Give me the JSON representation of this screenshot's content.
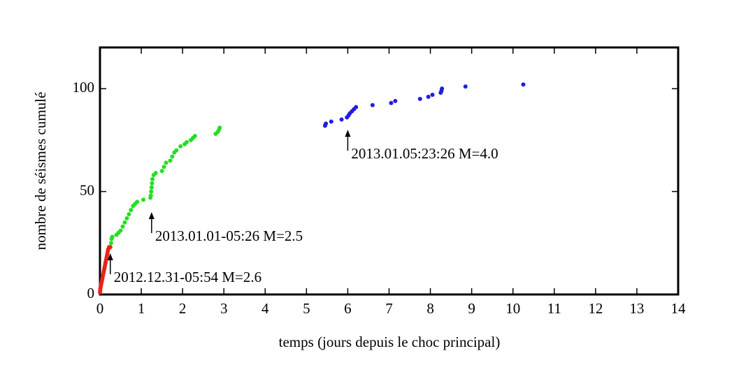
{
  "chart_data": {
    "type": "scatter",
    "xlabel": "temps (jours depuis le choc principal)",
    "ylabel": "nombre de séismes cumulé",
    "xlim": [
      0,
      14
    ],
    "xticks": [
      0,
      1,
      2,
      3,
      4,
      5,
      6,
      7,
      8,
      9,
      10,
      11,
      12,
      13,
      14
    ],
    "ylim": [
      0,
      120
    ],
    "yticks": [
      0,
      50,
      100
    ],
    "series": [
      {
        "color": "#e8231b",
        "x": [
          0,
          0.005,
          0.01,
          0.02,
          0.03,
          0.04,
          0.05,
          0.06,
          0.07,
          0.08,
          0.09,
          0.1,
          0.11,
          0.12,
          0.13,
          0.14,
          0.15,
          0.16,
          0.17,
          0.18,
          0.19,
          0.2,
          0.22,
          0.25
        ],
        "values": [
          1,
          2,
          3,
          4,
          5,
          6,
          7,
          8,
          9,
          10,
          11,
          12,
          13,
          14,
          15,
          16,
          17,
          18,
          19,
          20,
          21,
          22,
          23,
          23
        ]
      },
      {
        "color": "#22e01e",
        "x": [
          0.27,
          0.28,
          0.3,
          0.4,
          0.45,
          0.5,
          0.55,
          0.6,
          0.65,
          0.7,
          0.75,
          0.8,
          0.85,
          0.9,
          1.05,
          1.22,
          1.23,
          1.24,
          1.25,
          1.26,
          1.27,
          1.3,
          1.35,
          1.5,
          1.55,
          1.6,
          1.7,
          1.75,
          1.8,
          1.85,
          1.95,
          2.05,
          2.1,
          2.2,
          2.25,
          2.3,
          2.8,
          2.85,
          2.88,
          2.9
        ],
        "values": [
          25,
          27,
          28,
          29,
          30,
          31,
          33,
          35,
          37,
          39,
          41,
          43,
          44,
          45,
          46,
          47,
          48,
          50,
          52,
          54,
          56,
          58,
          59,
          60,
          62,
          64,
          65,
          67,
          69,
          70,
          72,
          73,
          74,
          75,
          76,
          77,
          78,
          79,
          80,
          81
        ]
      },
      {
        "color": "#1e1ee0",
        "x": [
          5.45,
          5.47,
          5.6,
          5.85,
          5.98,
          6.02,
          6.05,
          6.1,
          6.15,
          6.2,
          6.6,
          7.05,
          7.15,
          7.75,
          7.95,
          8.05,
          8.25,
          8.27,
          8.28,
          8.85,
          10.25
        ],
        "values": [
          82,
          83,
          84,
          85,
          86,
          87,
          88,
          89,
          90,
          91,
          92,
          93,
          94,
          95,
          96,
          97,
          98,
          99,
          100,
          101,
          102
        ]
      }
    ],
    "annotations": [
      {
        "text": "2012.12.31-05:54 M=2.6",
        "x": 0.25,
        "y": 20
      },
      {
        "text": "2013.01.01-05:26 M=2.5",
        "x": 1.25,
        "y": 40
      },
      {
        "text": "2013.01.05:23:26 M=4.0",
        "x": 6.0,
        "y": 80
      }
    ]
  }
}
